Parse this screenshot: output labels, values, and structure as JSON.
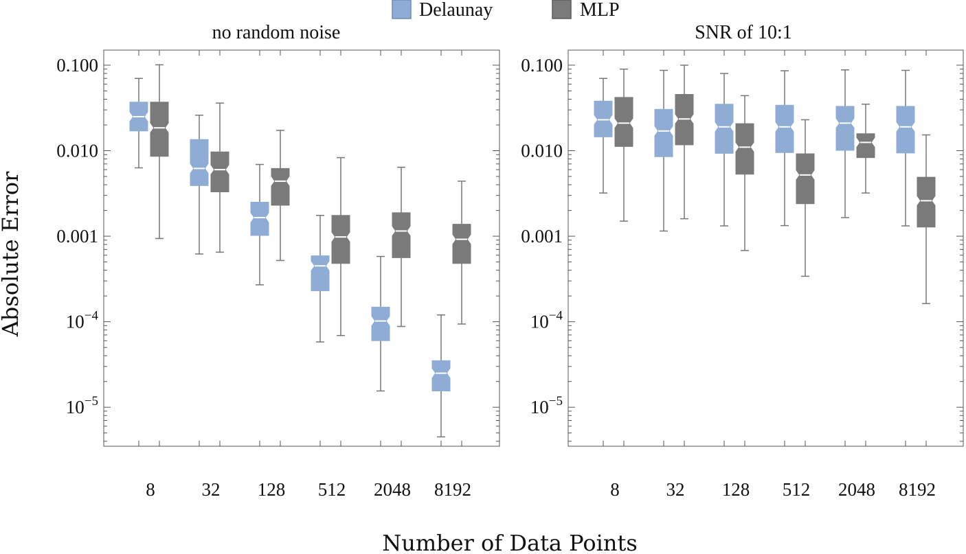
{
  "legend": {
    "items": [
      {
        "label": "Delaunay",
        "color": "#8fadd4"
      },
      {
        "label": "MLP",
        "color": "#7a7a7a"
      }
    ]
  },
  "axes": {
    "ylabel": "Absolute Error",
    "xlabel": "Number of Data Points"
  },
  "colors": {
    "delaunay": "#8fadd4",
    "mlp": "#7a7a7a",
    "whisker": "#777777"
  },
  "chart_data": [
    {
      "type": "box",
      "title": "no random noise",
      "yscale": "log",
      "ylim": [
        3.5e-06,
        0.15
      ],
      "yticks": [
        {
          "value": 0.1,
          "label": "0.100"
        },
        {
          "value": 0.01,
          "label": "0.010"
        },
        {
          "value": 0.001,
          "label": "0.001"
        },
        {
          "value": 0.0001,
          "base": "10",
          "exp": "−4"
        },
        {
          "value": 1e-05,
          "base": "10",
          "exp": "−5"
        }
      ],
      "categories": [
        "8",
        "32",
        "128",
        "512",
        "2048",
        "8192"
      ],
      "series": [
        {
          "name": "Delaunay",
          "boxes": [
            {
              "min": 0.0063,
              "q1": 0.017,
              "median": 0.025,
              "q3": 0.037,
              "max": 0.07
            },
            {
              "min": 0.00062,
              "q1": 0.0039,
              "median": 0.0062,
              "q3": 0.0135,
              "max": 0.026
            },
            {
              "min": 0.00027,
              "q1": 0.00102,
              "median": 0.00165,
              "q3": 0.0025,
              "max": 0.0069
            },
            {
              "min": 5.8e-05,
              "q1": 0.00023,
              "median": 0.00045,
              "q3": 0.00059,
              "max": 0.00175
            },
            {
              "min": 1.55e-05,
              "q1": 6e-05,
              "median": 0.000102,
              "q3": 0.000148,
              "max": 0.00058
            },
            {
              "min": 4.5e-06,
              "q1": 1.55e-05,
              "median": 2.5e-05,
              "q3": 3.5e-05,
              "max": 0.00012
            }
          ]
        },
        {
          "name": "MLP",
          "boxes": [
            {
              "min": 0.00094,
              "q1": 0.0086,
              "median": 0.0185,
              "q3": 0.037,
              "max": 0.101
            },
            {
              "min": 0.00065,
              "q1": 0.0033,
              "median": 0.006,
              "q3": 0.0097,
              "max": 0.036
            },
            {
              "min": 0.00052,
              "q1": 0.0023,
              "median": 0.0044,
              "q3": 0.0062,
              "max": 0.0173
            },
            {
              "min": 6.9e-05,
              "q1": 0.00048,
              "median": 0.00098,
              "q3": 0.00175,
              "max": 0.0083
            },
            {
              "min": 8.8e-05,
              "q1": 0.00056,
              "median": 0.00115,
              "q3": 0.00188,
              "max": 0.0064
            },
            {
              "min": 9.4e-05,
              "q1": 0.00048,
              "median": 0.00092,
              "q3": 0.00138,
              "max": 0.0044
            }
          ]
        }
      ]
    },
    {
      "type": "box",
      "title": "SNR of 10:1",
      "yscale": "log",
      "ylim": [
        3.5e-06,
        0.15
      ],
      "yticks": [
        {
          "value": 0.1,
          "label": "0.100"
        },
        {
          "value": 0.01,
          "label": "0.010"
        },
        {
          "value": 0.001,
          "label": "0.001"
        },
        {
          "value": 0.0001,
          "base": "10",
          "exp": "−4"
        },
        {
          "value": 1e-05,
          "base": "10",
          "exp": "−5"
        }
      ],
      "categories": [
        "8",
        "32",
        "128",
        "512",
        "2048",
        "8192"
      ],
      "series": [
        {
          "name": "Delaunay",
          "boxes": [
            {
              "min": 0.0032,
              "q1": 0.0145,
              "median": 0.023,
              "q3": 0.038,
              "max": 0.07
            },
            {
              "min": 0.00115,
              "q1": 0.0085,
              "median": 0.017,
              "q3": 0.0305,
              "max": 0.087
            },
            {
              "min": 0.00132,
              "q1": 0.0093,
              "median": 0.019,
              "q3": 0.035,
              "max": 0.08
            },
            {
              "min": 0.00133,
              "q1": 0.0095,
              "median": 0.019,
              "q3": 0.034,
              "max": 0.086
            },
            {
              "min": 0.00165,
              "q1": 0.0101,
              "median": 0.021,
              "q3": 0.033,
              "max": 0.088
            },
            {
              "min": 0.00132,
              "q1": 0.0094,
              "median": 0.019,
              "q3": 0.033,
              "max": 0.087
            }
          ]
        },
        {
          "name": "MLP",
          "boxes": [
            {
              "min": 0.0015,
              "q1": 0.0112,
              "median": 0.021,
              "q3": 0.042,
              "max": 0.09
            },
            {
              "min": 0.0016,
              "q1": 0.0117,
              "median": 0.0235,
              "q3": 0.0455,
              "max": 0.1
            },
            {
              "min": 0.00068,
              "q1": 0.0053,
              "median": 0.011,
              "q3": 0.0207,
              "max": 0.044
            },
            {
              "min": 0.00034,
              "q1": 0.0024,
              "median": 0.0052,
              "q3": 0.0092,
              "max": 0.023
            },
            {
              "min": 0.0032,
              "q1": 0.0083,
              "median": 0.0125,
              "q3": 0.0158,
              "max": 0.035
            },
            {
              "min": 0.000163,
              "q1": 0.00128,
              "median": 0.0026,
              "q3": 0.0049,
              "max": 0.0153
            }
          ]
        }
      ]
    }
  ]
}
